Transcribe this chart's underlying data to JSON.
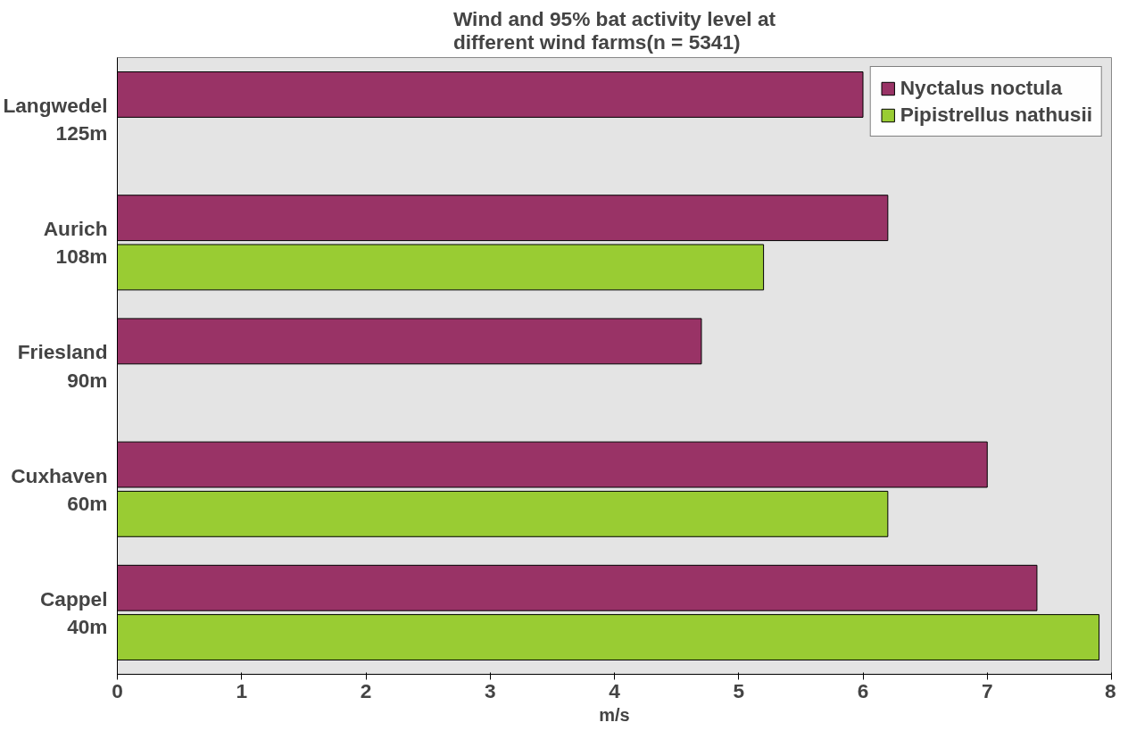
{
  "chart_data": {
    "type": "bar",
    "orientation": "horizontal",
    "title": "Wind and 95% bat activity level at\ndifferent wind farms(n = 5341)",
    "xlabel": "m/s",
    "categories": [
      "Langwedel\n125m",
      "Aurich\n108m",
      "Friesland\n90m",
      "Cuxhaven\n60m",
      "Cappel\n40m"
    ],
    "series": [
      {
        "name": "Nyctalus noctula",
        "color": "#993366",
        "values": [
          6.0,
          6.2,
          4.7,
          7.0,
          7.4
        ]
      },
      {
        "name": "Pipistrellus nathusii",
        "color": "#99cc33",
        "values": [
          null,
          5.2,
          null,
          6.2,
          7.9
        ]
      }
    ],
    "xlim": [
      0,
      8
    ],
    "xticks": [
      0,
      1,
      2,
      3,
      4,
      5,
      6,
      7,
      8
    ],
    "grid": false,
    "legend": "top right"
  }
}
